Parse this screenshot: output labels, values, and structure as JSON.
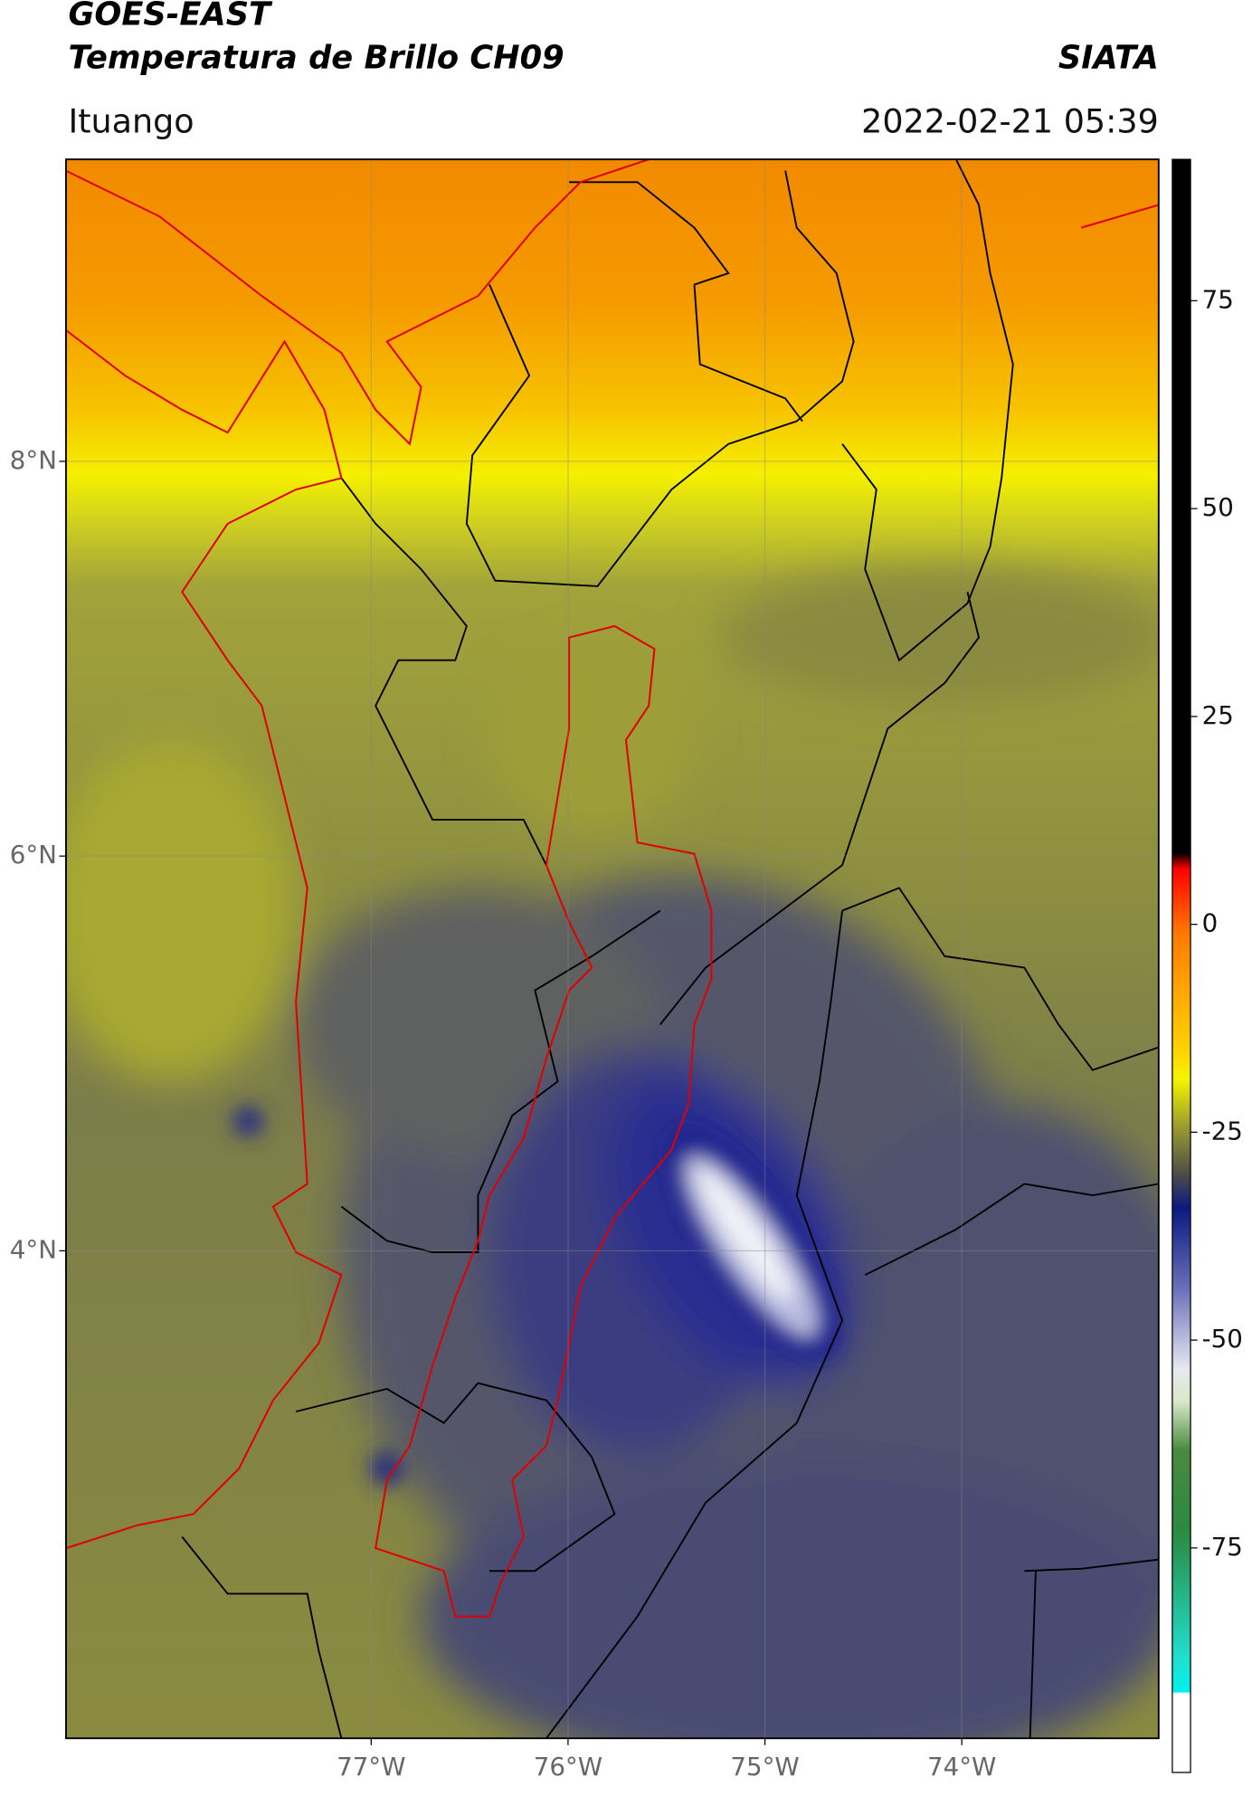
{
  "header": {
    "title": "GOES-EAST",
    "subtitle": "Temperatura de Brillo CH09",
    "source": "SIATA",
    "location": "Ituango",
    "datetime": "2022-02-21 05:39"
  },
  "map": {
    "xlim": [
      -78.55,
      -73.0
    ],
    "ylim": [
      1.53,
      9.53
    ],
    "xticks": [
      {
        "value": -77,
        "label": "77°W"
      },
      {
        "value": -76,
        "label": "76°W"
      },
      {
        "value": -75,
        "label": "75°W"
      },
      {
        "value": -74,
        "label": "74°W"
      }
    ],
    "yticks": [
      {
        "value": 8,
        "label": "8°N"
      },
      {
        "value": 6,
        "label": "6°N"
      },
      {
        "value": 4,
        "label": "4°N"
      }
    ],
    "grid": true
  },
  "colorbar": {
    "lim": [
      -102,
      92
    ],
    "ticks": [
      75,
      50,
      25,
      0,
      -25,
      -50,
      -75
    ]
  }
}
